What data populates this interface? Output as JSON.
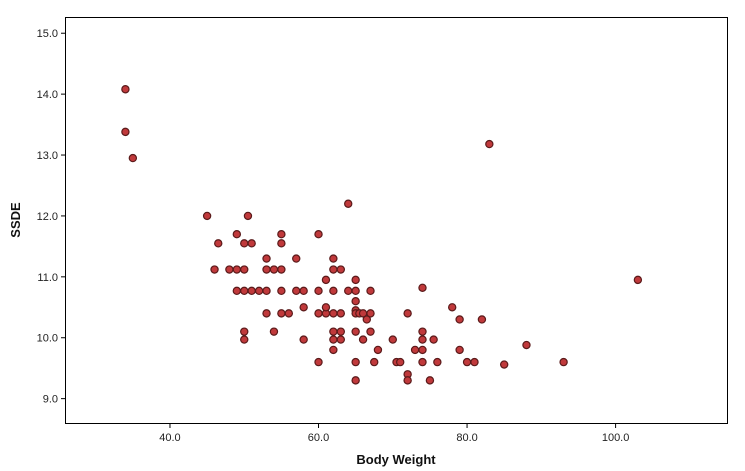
{
  "chart_data": {
    "type": "scatter",
    "title": "",
    "xlabel": "Body Weight",
    "ylabel": "SSDE",
    "xlim": [
      26.0,
      115.0
    ],
    "ylim": [
      8.6,
      15.25
    ],
    "xticks": [
      "40.0",
      "60.0",
      "80.0",
      "100.0"
    ],
    "yticks": [
      "9.0",
      "10.0",
      "11.0",
      "12.0",
      "13.0",
      "14.0",
      "15.0"
    ],
    "grid": false,
    "marker_fill": "#c0393b",
    "marker_edge": "#5a1a1a",
    "series": [
      {
        "points": [
          [
            34,
            14.08
          ],
          [
            34,
            13.38
          ],
          [
            35,
            12.95
          ],
          [
            45,
            12.0
          ],
          [
            46,
            11.12
          ],
          [
            46.5,
            11.55
          ],
          [
            48,
            11.12
          ],
          [
            49,
            11.7
          ],
          [
            49,
            10.77
          ],
          [
            49,
            11.12
          ],
          [
            50,
            10.77
          ],
          [
            50,
            11.12
          ],
          [
            50,
            11.55
          ],
          [
            50,
            10.1
          ],
          [
            50,
            9.97
          ],
          [
            50.5,
            12.0
          ],
          [
            51,
            10.77
          ],
          [
            51,
            11.55
          ],
          [
            52,
            10.77
          ],
          [
            53,
            10.77
          ],
          [
            53,
            11.12
          ],
          [
            53,
            11.3
          ],
          [
            53,
            10.4
          ],
          [
            54,
            11.12
          ],
          [
            54,
            10.1
          ],
          [
            55,
            11.7
          ],
          [
            55,
            11.55
          ],
          [
            55,
            11.12
          ],
          [
            55,
            10.77
          ],
          [
            55,
            10.4
          ],
          [
            56,
            10.4
          ],
          [
            57,
            11.3
          ],
          [
            57,
            10.77
          ],
          [
            58,
            10.77
          ],
          [
            58,
            10.5
          ],
          [
            58,
            9.97
          ],
          [
            60,
            11.7
          ],
          [
            60,
            10.77
          ],
          [
            60,
            10.4
          ],
          [
            60,
            9.6
          ],
          [
            61,
            10.4
          ],
          [
            61,
            10.5
          ],
          [
            61,
            10.95
          ],
          [
            62,
            11.3
          ],
          [
            62,
            11.12
          ],
          [
            62,
            10.77
          ],
          [
            62,
            10.4
          ],
          [
            62,
            10.1
          ],
          [
            62,
            9.97
          ],
          [
            62,
            9.8
          ],
          [
            63,
            11.12
          ],
          [
            63,
            10.4
          ],
          [
            63,
            10.1
          ],
          [
            63,
            9.97
          ],
          [
            64,
            12.2
          ],
          [
            64,
            10.77
          ],
          [
            65,
            10.95
          ],
          [
            65,
            10.77
          ],
          [
            65,
            10.6
          ],
          [
            65,
            10.45
          ],
          [
            65,
            10.4
          ],
          [
            65,
            10.1
          ],
          [
            65,
            9.6
          ],
          [
            65,
            9.3
          ],
          [
            65.5,
            10.4
          ],
          [
            66,
            10.4
          ],
          [
            66,
            9.97
          ],
          [
            66.5,
            10.3
          ],
          [
            67,
            10.77
          ],
          [
            67,
            10.4
          ],
          [
            67,
            10.1
          ],
          [
            67.5,
            9.6
          ],
          [
            68,
            9.8
          ],
          [
            70,
            9.97
          ],
          [
            70.5,
            9.6
          ],
          [
            71,
            9.6
          ],
          [
            72,
            10.4
          ],
          [
            72,
            9.4
          ],
          [
            72,
            9.3
          ],
          [
            73,
            9.8
          ],
          [
            74,
            10.82
          ],
          [
            74,
            10.1
          ],
          [
            74,
            9.97
          ],
          [
            74,
            9.8
          ],
          [
            74,
            9.6
          ],
          [
            75,
            9.3
          ],
          [
            75.5,
            9.97
          ],
          [
            76,
            9.6
          ],
          [
            78,
            10.5
          ],
          [
            79,
            10.3
          ],
          [
            79,
            9.8
          ],
          [
            80,
            9.6
          ],
          [
            81,
            9.6
          ],
          [
            82,
            10.3
          ],
          [
            83,
            13.18
          ],
          [
            85,
            9.56
          ],
          [
            88,
            9.88
          ],
          [
            93,
            9.6
          ],
          [
            103,
            10.95
          ]
        ]
      }
    ]
  }
}
